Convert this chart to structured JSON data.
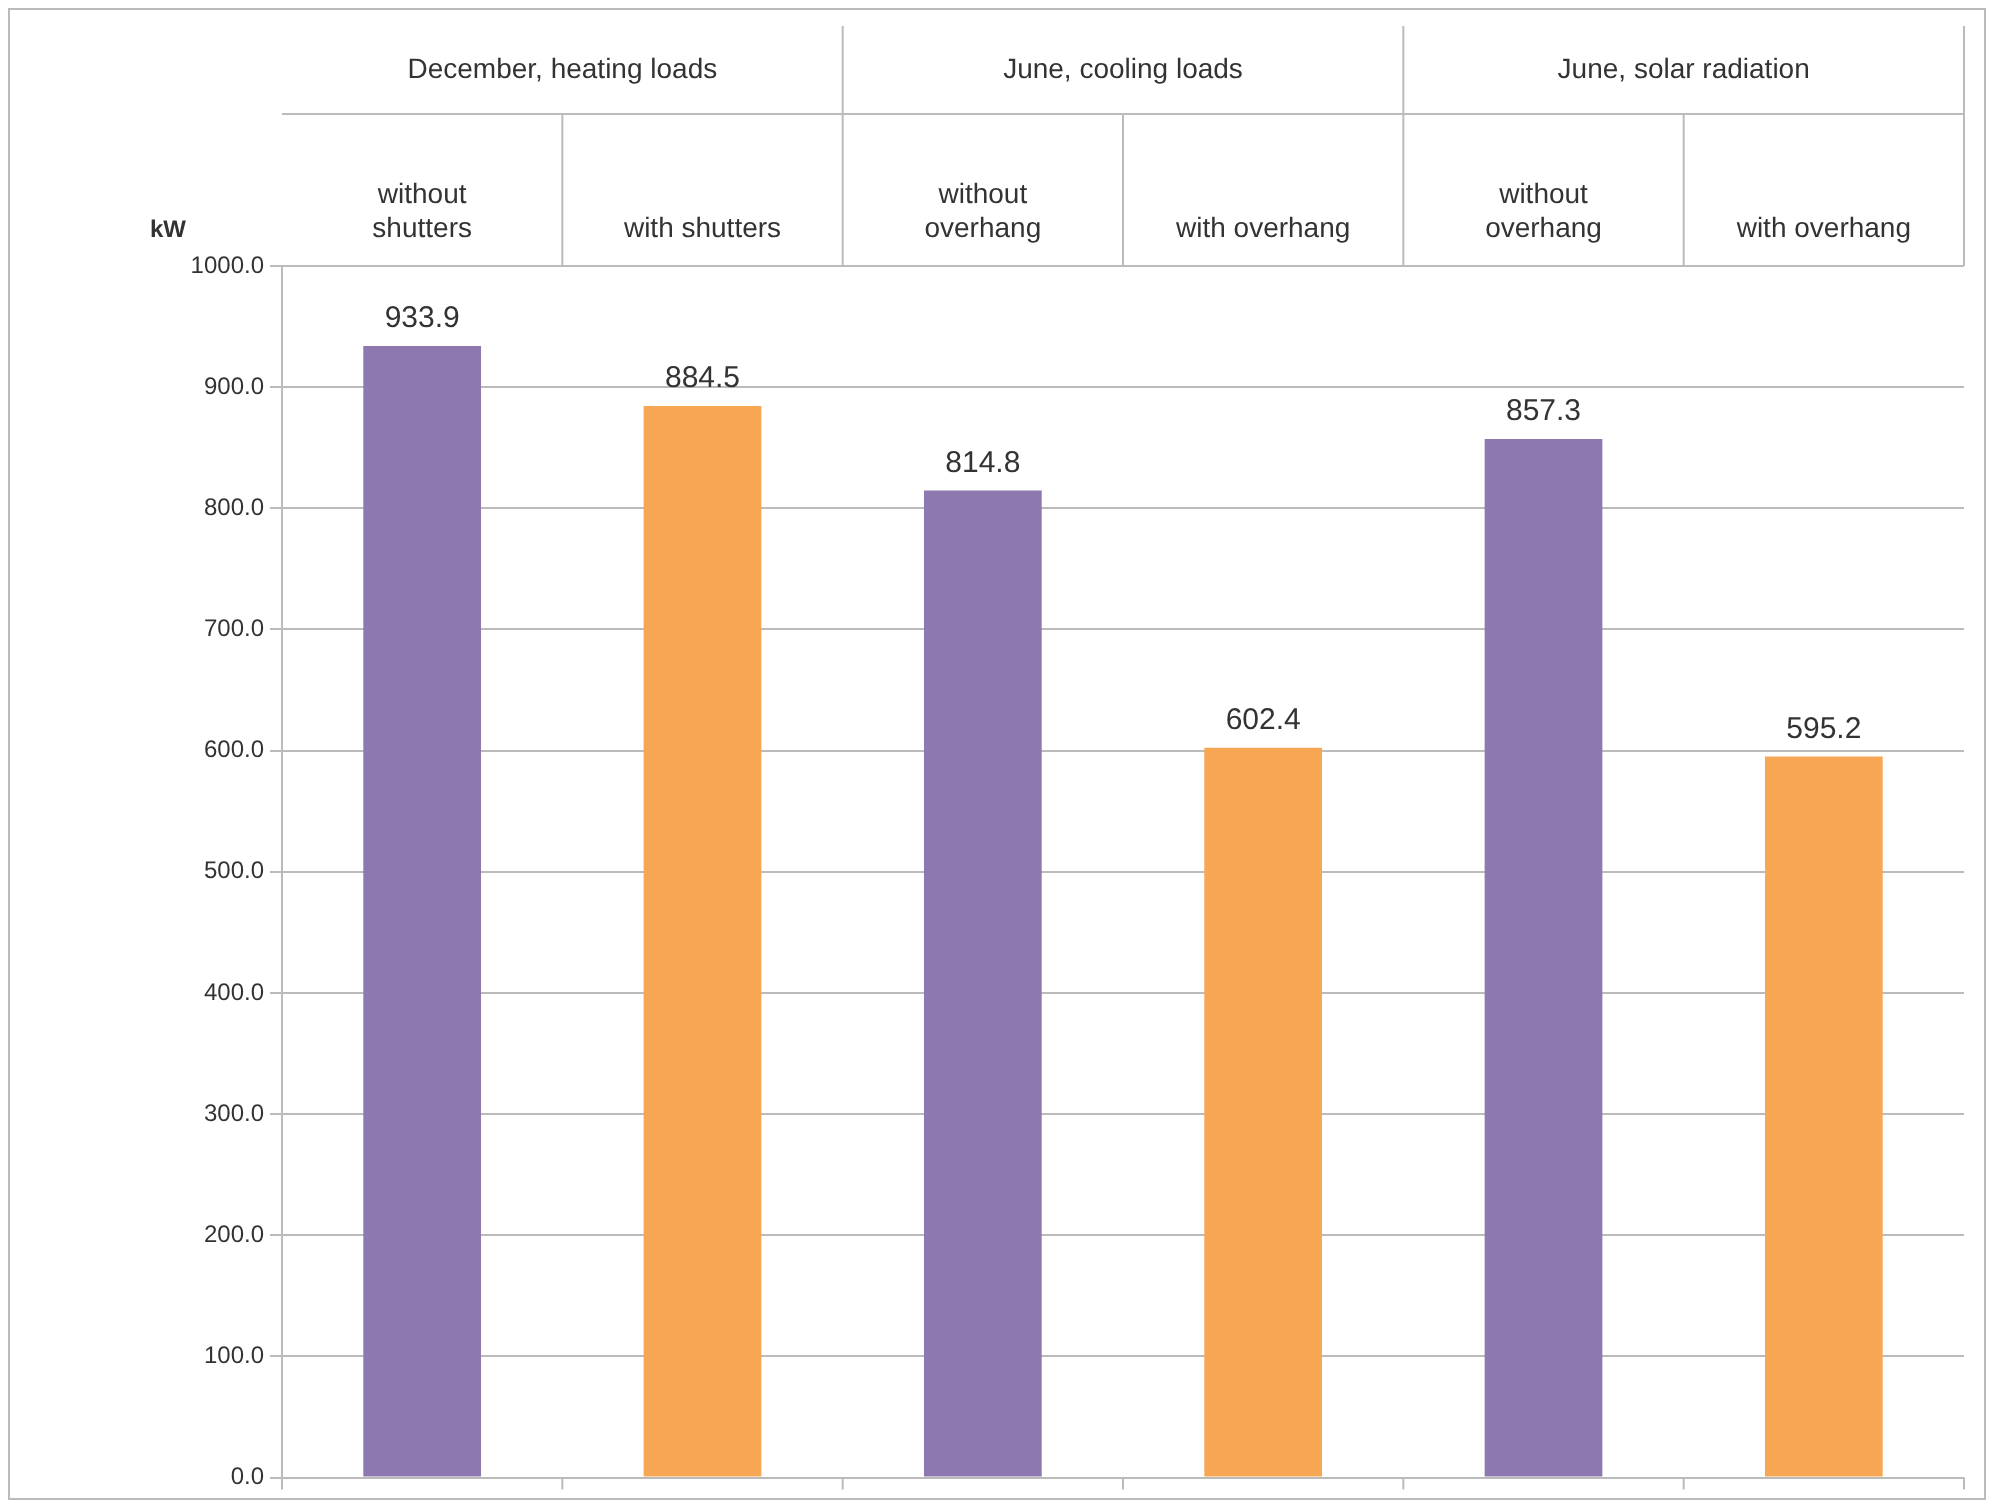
{
  "chart_data": {
    "type": "bar",
    "ylabel": "kW",
    "categories": [
      "without shutters",
      "with shutters",
      "without overhang",
      "with overhang",
      "without overhang",
      "with overhang"
    ],
    "values": [
      933.9,
      884.5,
      814.8,
      602.4,
      857.3,
      595.2
    ],
    "colors": [
      "#8e78b0",
      "#f7a654",
      "#8e78b0",
      "#f7a654",
      "#8e78b0",
      "#f7a654"
    ],
    "annotations": [
      "December, heating loads",
      "June, cooling loads",
      "June, solar radiation"
    ],
    "ylim": [
      0,
      1000
    ],
    "yticks": [
      {
        "value": 0,
        "label": "0.0"
      },
      {
        "value": 100,
        "label": "100.0"
      },
      {
        "value": 200,
        "label": "200.0"
      },
      {
        "value": 300,
        "label": "300.0"
      },
      {
        "value": 400,
        "label": "400.0"
      },
      {
        "value": 500,
        "label": "500.0"
      },
      {
        "value": 600,
        "label": "600.0"
      },
      {
        "value": 700,
        "label": "700.0"
      },
      {
        "value": 800,
        "label": "800.0"
      },
      {
        "value": 900,
        "label": "900.0"
      },
      {
        "value": 1000,
        "label": "1000.0"
      }
    ],
    "grid": "y",
    "data_labels": true
  }
}
